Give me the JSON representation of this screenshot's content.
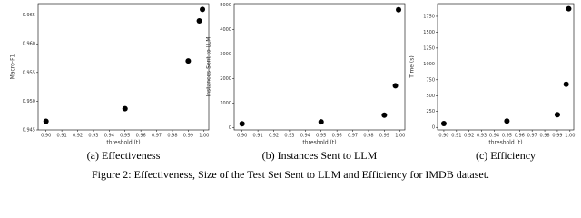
{
  "chart_data": [
    {
      "type": "scatter",
      "caption": "(a) Effectiveness",
      "xlabel": "threshold (t)",
      "ylabel": "Macro-F1",
      "color": "#000000",
      "x": [
        0.9,
        0.95,
        0.99,
        0.997,
        0.999
      ],
      "values": [
        0.9465,
        0.9487,
        0.957,
        0.964,
        0.966
      ],
      "xlim": [
        0.895,
        1.003
      ],
      "ylim": [
        0.945,
        0.967
      ],
      "xticks": [
        {
          "value": 0.9,
          "label": "0.90"
        },
        0.91,
        0.92,
        0.93,
        0.94,
        0.95,
        0.96,
        0.97,
        0.98,
        0.99,
        {
          "value": 1.0,
          "label": "1.00"
        }
      ],
      "yticks": [
        0.945,
        {
          "value": 0.95,
          "label": "0.950"
        },
        0.955,
        {
          "value": 0.96,
          "label": "0.960"
        },
        0.965
      ]
    },
    {
      "type": "scatter",
      "caption": "(b) Instances Sent to LLM",
      "xlabel": "threshold (t)",
      "ylabel": "Instances Sent to LLM",
      "color": "#000000",
      "x": [
        0.9,
        0.95,
        0.99,
        0.997,
        0.999
      ],
      "values": [
        150,
        230,
        500,
        1700,
        4800
      ],
      "xlim": [
        0.895,
        1.003
      ],
      "ylim": [
        -100,
        5050
      ],
      "xticks": [
        {
          "value": 0.9,
          "label": "0.90"
        },
        0.91,
        0.92,
        0.93,
        0.94,
        0.95,
        0.96,
        0.97,
        0.98,
        0.99,
        {
          "value": 1.0,
          "label": "1.00"
        }
      ],
      "yticks": [
        0,
        1000,
        2000,
        3000,
        4000,
        5000
      ]
    },
    {
      "type": "scatter",
      "caption": "(c) Efficiency",
      "xlabel": "threshold (t)",
      "ylabel": "Time (s)",
      "color": "#000000",
      "x": [
        0.9,
        0.95,
        0.99,
        0.997,
        0.999
      ],
      "values": [
        60,
        100,
        200,
        680,
        1870
      ],
      "xlim": [
        0.895,
        1.003
      ],
      "ylim": [
        -40,
        1950
      ],
      "xticks": [
        {
          "value": 0.9,
          "label": "0.90"
        },
        0.91,
        0.92,
        0.93,
        0.94,
        0.95,
        0.96,
        0.97,
        0.98,
        0.99,
        {
          "value": 1.0,
          "label": "1.00"
        }
      ],
      "yticks": [
        0,
        250,
        500,
        750,
        1000,
        1250,
        1500,
        1750
      ]
    }
  ],
  "figure_caption": "Figure 2: Effectiveness, Size of the Test Set Sent to LLM and Efficiency for IMDB dataset."
}
